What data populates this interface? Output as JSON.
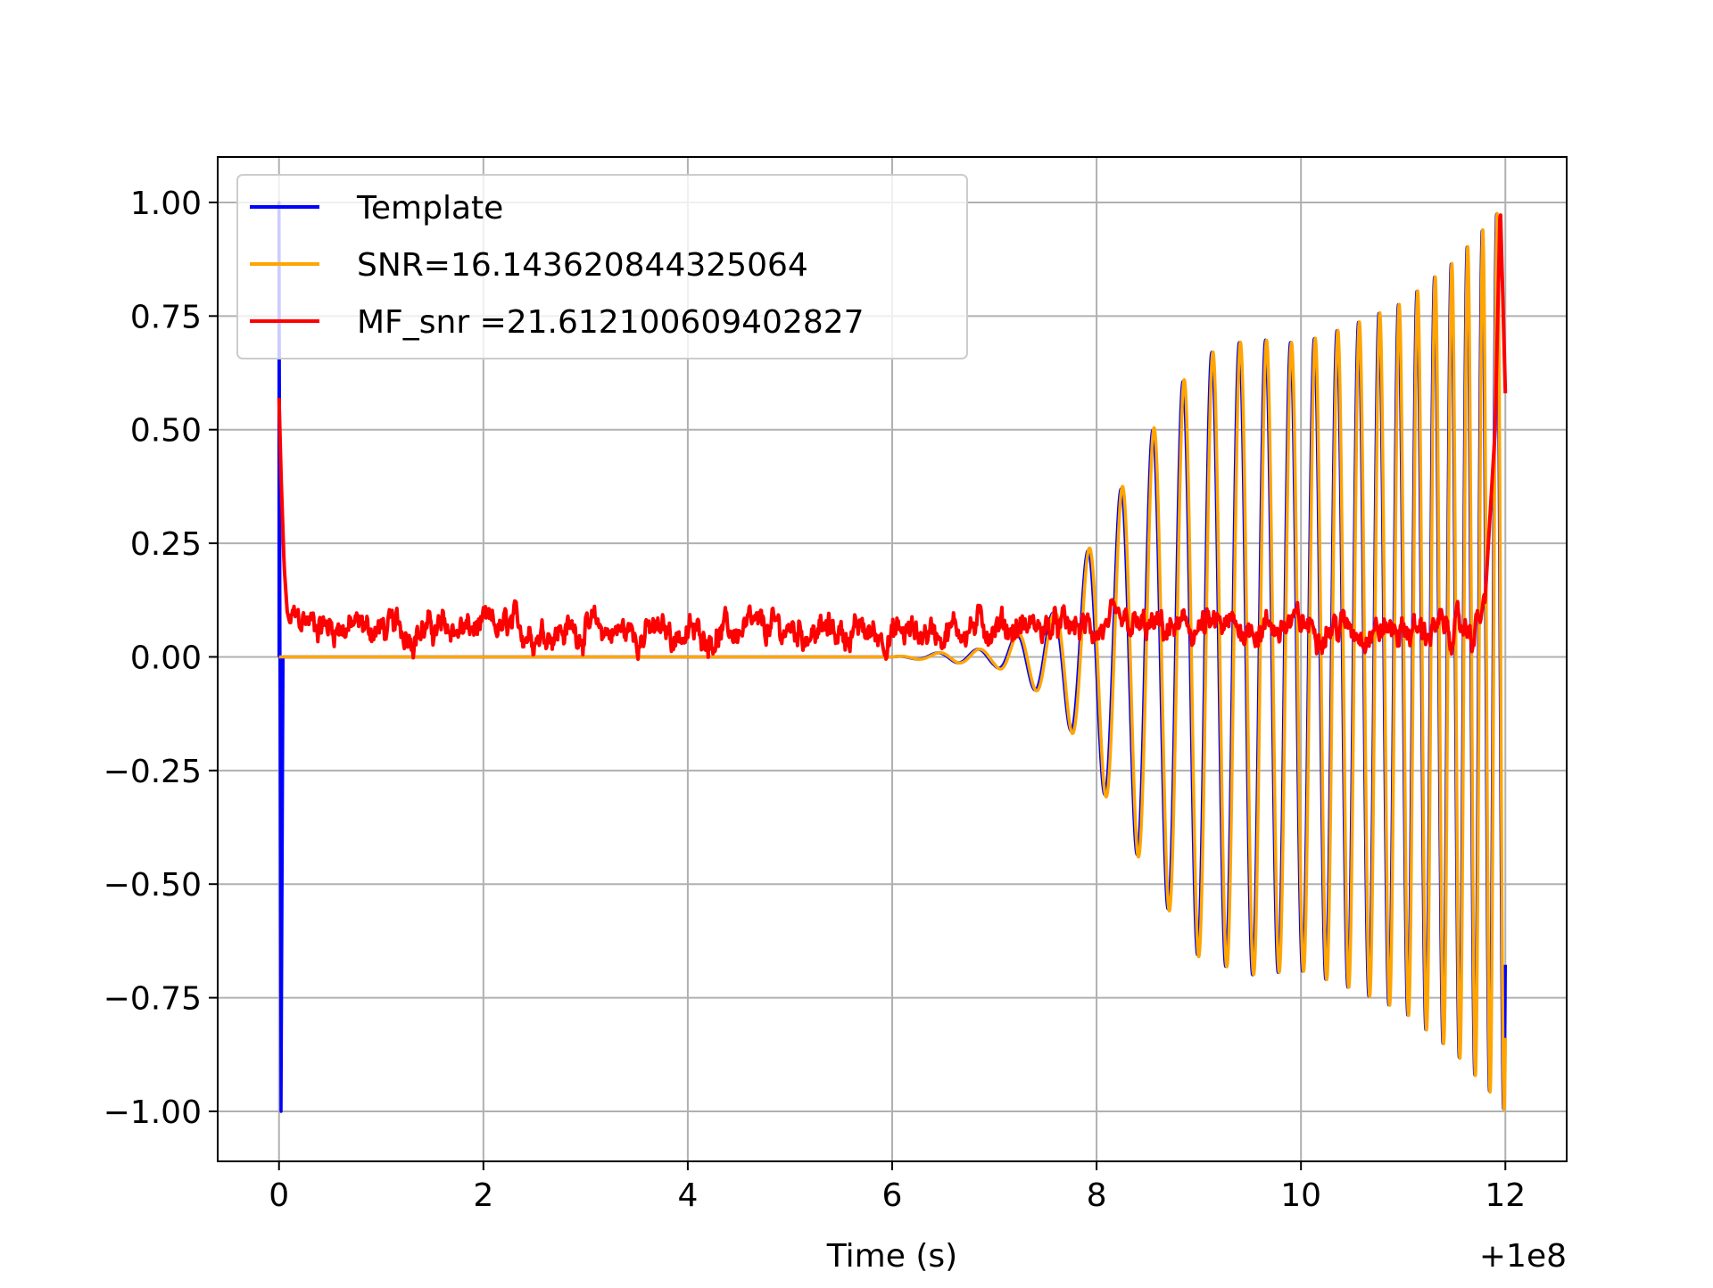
{
  "chart_data": {
    "type": "line",
    "title": "",
    "xlabel": "Time (s)",
    "ylabel": "",
    "x_offset_label": "+1e8",
    "xlim": [
      -0.6,
      12.6
    ],
    "ylim": [
      -1.11,
      1.1
    ],
    "xticks": [
      0,
      2,
      4,
      6,
      8,
      10,
      12
    ],
    "xtick_labels": [
      "0",
      "2",
      "4",
      "6",
      "8",
      "10",
      "12"
    ],
    "yticks": [
      1.0,
      0.75,
      0.5,
      0.25,
      0.0,
      -0.25,
      -0.5,
      -0.75,
      -1.0
    ],
    "ytick_labels": [
      "1.00",
      "0.75",
      "0.50",
      "0.25",
      "0.00",
      "−0.25",
      "−0.50",
      "−0.75",
      "−1.00"
    ],
    "grid": true,
    "legend_position": "top-left",
    "series": [
      {
        "name": "Template",
        "color": "#0000ff",
        "kind": "chirp",
        "description_points": {
          "x": [
            0,
            0.03,
            0.05,
            6.0,
            7.0,
            7.6,
            8.0,
            8.6,
            9.0,
            9.5,
            10.0,
            10.5,
            11.0,
            11.5,
            11.9,
            12.0
          ],
          "envelope": [
            1.0,
            1.0,
            0.0,
            0.0,
            0.02,
            0.1,
            0.27,
            0.52,
            0.66,
            0.7,
            0.69,
            0.73,
            0.78,
            0.87,
            0.97,
            1.0
          ]
        }
      },
      {
        "name": "SNR=16.143620844325064",
        "color": "#ffa500",
        "kind": "chirp",
        "description_points": {
          "x": [
            0,
            6.0,
            7.0,
            7.6,
            8.0,
            8.6,
            9.0,
            9.5,
            10.0,
            10.5,
            11.0,
            11.5,
            11.9,
            12.0
          ],
          "envelope": [
            0.0,
            0.0,
            0.02,
            0.1,
            0.27,
            0.52,
            0.66,
            0.7,
            0.69,
            0.73,
            0.78,
            0.87,
            0.97,
            1.0
          ]
        }
      },
      {
        "name": "MF_snr =21.612100609402827",
        "color": "#ff0000",
        "kind": "noise",
        "x": [
          0.0,
          0.02,
          0.05,
          0.08,
          0.1,
          0.2,
          0.5,
          1.0,
          2.0,
          3.0,
          4.0,
          5.0,
          6.0,
          7.0,
          8.0,
          9.0,
          10.0,
          11.0,
          11.7,
          11.8,
          11.9,
          11.95,
          12.0
        ],
        "y": [
          0.57,
          0.4,
          0.2,
          0.1,
          0.08,
          0.08,
          0.07,
          0.06,
          0.06,
          0.06,
          0.05,
          0.06,
          0.05,
          0.07,
          0.06,
          0.06,
          0.07,
          0.06,
          0.06,
          0.12,
          0.5,
          1.0,
          0.58
        ]
      }
    ]
  }
}
